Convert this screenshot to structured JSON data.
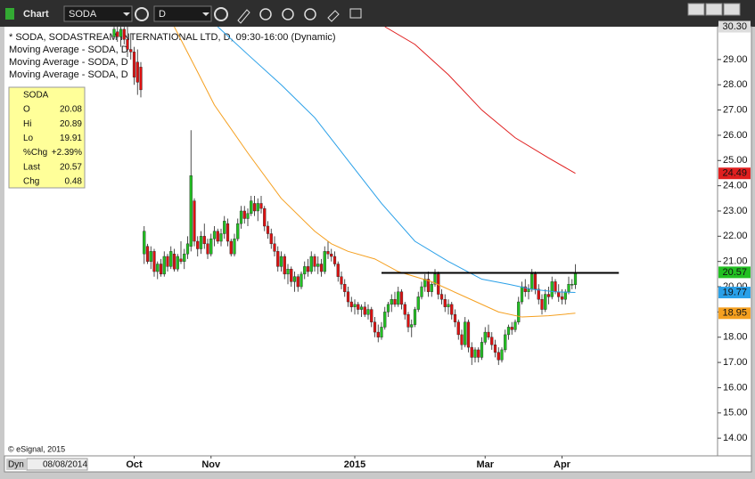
{
  "toolbar": {
    "title": "Chart",
    "symbol": "SODA",
    "interval": "D"
  },
  "chart_data": {
    "type": "candlestick",
    "legend_title": "* SODA, SODASTREAM INTERNATIONAL LTD, D, 09:30-16:00 (Dynamic)",
    "annotation": "© eSignal, 2015",
    "up_color": "#22c022",
    "down_color": "#dd1111",
    "categories": [
      null,
      null,
      null,
      null,
      null,
      null,
      "Oct",
      null,
      null,
      null,
      null,
      null,
      null,
      null,
      null,
      null,
      null,
      null,
      null,
      null,
      null,
      null,
      null,
      null,
      null,
      null,
      null,
      null,
      null,
      "Nov",
      null,
      null,
      null,
      null,
      null,
      null,
      null,
      null,
      null,
      null,
      null,
      null,
      null,
      null,
      null,
      null,
      null,
      null,
      null,
      null,
      null,
      null,
      null,
      null,
      null,
      null,
      null,
      null,
      null,
      null,
      null,
      null,
      null,
      null,
      null,
      null,
      null,
      null,
      null,
      null,
      null,
      null,
      "2015",
      null,
      null,
      null,
      null,
      null,
      null,
      null,
      null,
      null,
      null,
      null,
      null,
      null,
      null,
      null,
      null,
      null,
      null,
      null,
      null,
      null,
      null,
      null,
      null,
      null,
      null,
      null,
      null,
      null,
      null,
      null,
      null,
      null,
      null,
      null,
      null,
      null,
      null,
      "Mar",
      null,
      null,
      null,
      null,
      null,
      null,
      null,
      null,
      null,
      null,
      null,
      null,
      null,
      null,
      null,
      null,
      null,
      null,
      null,
      null,
      null,
      null,
      "Apr",
      null,
      null,
      null,
      null
    ],
    "ohlc": [
      [
        29.9,
        30.3,
        29.8,
        30.2
      ],
      [
        30.1,
        30.3,
        29.7,
        29.9
      ],
      [
        29.9,
        30.3,
        29.5,
        30.2
      ],
      [
        30.2,
        30.3,
        29.6,
        29.8
      ],
      [
        29.8,
        30.3,
        29.1,
        29.4
      ],
      [
        29.4,
        30.0,
        29.0,
        29.3
      ],
      [
        29.3,
        29.5,
        28.0,
        28.3
      ],
      [
        28.9,
        29.4,
        27.6,
        28.1
      ],
      [
        28.7,
        28.9,
        27.5,
        27.8
      ],
      [
        21.3,
        22.4,
        20.9,
        22.2
      ],
      [
        21.6,
        21.7,
        20.9,
        21.0
      ],
      [
        21.0,
        21.6,
        20.7,
        21.4
      ],
      [
        21.4,
        21.5,
        20.4,
        20.6
      ],
      [
        20.6,
        21.0,
        20.3,
        20.9
      ],
      [
        20.9,
        21.1,
        20.4,
        20.5
      ],
      [
        20.5,
        21.4,
        20.4,
        21.2
      ],
      [
        21.2,
        21.3,
        20.6,
        20.8
      ],
      [
        20.8,
        21.6,
        20.7,
        21.4
      ],
      [
        21.3,
        21.5,
        20.6,
        20.7
      ],
      [
        20.7,
        21.3,
        20.6,
        21.2
      ],
      [
        21.1,
        21.8,
        20.9,
        21.0
      ],
      [
        21.0,
        21.5,
        20.7,
        21.3
      ],
      [
        21.3,
        22.0,
        21.1,
        21.7
      ],
      [
        21.6,
        26.2,
        21.4,
        24.4
      ],
      [
        23.4,
        23.5,
        21.6,
        21.8
      ],
      [
        21.8,
        22.0,
        21.2,
        21.5
      ],
      [
        21.5,
        22.2,
        21.3,
        22.0
      ],
      [
        22.0,
        22.5,
        21.5,
        21.7
      ],
      [
        21.7,
        21.9,
        21.1,
        21.3
      ],
      [
        21.3,
        22.1,
        21.2,
        21.9
      ],
      [
        21.9,
        22.4,
        21.6,
        22.2
      ],
      [
        22.2,
        22.3,
        21.7,
        21.8
      ],
      [
        21.8,
        22.3,
        21.6,
        22.1
      ],
      [
        22.1,
        22.8,
        21.9,
        22.6
      ],
      [
        22.5,
        22.7,
        21.6,
        21.8
      ],
      [
        21.8,
        21.9,
        21.2,
        21.3
      ],
      [
        21.3,
        22.1,
        21.2,
        21.9
      ],
      [
        21.9,
        22.7,
        21.8,
        22.5
      ],
      [
        22.5,
        23.2,
        22.3,
        23.0
      ],
      [
        23.0,
        23.2,
        22.5,
        22.7
      ],
      [
        22.7,
        23.1,
        22.4,
        22.9
      ],
      [
        22.9,
        23.6,
        22.8,
        23.4
      ],
      [
        23.3,
        23.6,
        22.8,
        23.0
      ],
      [
        23.0,
        23.5,
        22.6,
        23.3
      ],
      [
        23.3,
        23.6,
        22.9,
        23.1
      ],
      [
        23.1,
        23.2,
        22.2,
        22.4
      ],
      [
        22.4,
        22.6,
        21.9,
        22.1
      ],
      [
        22.1,
        22.3,
        21.5,
        21.7
      ],
      [
        21.7,
        22.0,
        21.2,
        21.4
      ],
      [
        21.4,
        21.6,
        20.6,
        20.8
      ],
      [
        20.8,
        21.4,
        20.6,
        21.2
      ],
      [
        21.2,
        21.3,
        20.3,
        20.5
      ],
      [
        20.5,
        20.9,
        20.1,
        20.7
      ],
      [
        20.7,
        20.8,
        20.0,
        20.2
      ],
      [
        20.2,
        20.6,
        19.8,
        20.4
      ],
      [
        20.4,
        20.5,
        19.8,
        20.0
      ],
      [
        20.0,
        20.6,
        19.9,
        20.5
      ],
      [
        20.5,
        21.0,
        20.3,
        20.8
      ],
      [
        20.8,
        21.1,
        20.4,
        20.6
      ],
      [
        20.6,
        21.4,
        20.5,
        21.2
      ],
      [
        21.2,
        21.3,
        20.6,
        20.8
      ],
      [
        20.8,
        21.2,
        20.5,
        20.9
      ],
      [
        20.9,
        21.1,
        20.4,
        20.6
      ],
      [
        20.6,
        21.6,
        20.5,
        21.4
      ],
      [
        21.4,
        21.8,
        21.1,
        21.3
      ],
      [
        21.3,
        21.5,
        21.0,
        21.2
      ],
      [
        21.2,
        21.4,
        20.8,
        20.9
      ],
      [
        20.9,
        21.0,
        20.2,
        20.4
      ],
      [
        20.4,
        20.6,
        19.9,
        20.1
      ],
      [
        20.1,
        20.3,
        19.6,
        19.8
      ],
      [
        19.8,
        20.0,
        19.2,
        19.4
      ],
      [
        19.4,
        19.6,
        19.0,
        19.2
      ],
      [
        19.2,
        19.5,
        18.9,
        19.3
      ],
      [
        19.3,
        19.4,
        18.9,
        19.1
      ],
      [
        19.1,
        19.3,
        18.8,
        19.2
      ],
      [
        19.2,
        19.4,
        18.8,
        18.9
      ],
      [
        18.9,
        19.3,
        18.7,
        19.1
      ],
      [
        19.1,
        19.2,
        18.4,
        18.6
      ],
      [
        18.6,
        18.8,
        18.0,
        18.2
      ],
      [
        18.2,
        18.5,
        17.8,
        18.0
      ],
      [
        18.0,
        18.6,
        17.9,
        18.4
      ],
      [
        18.4,
        19.2,
        18.3,
        19.0
      ],
      [
        19.0,
        19.4,
        18.8,
        19.3
      ],
      [
        19.3,
        19.7,
        19.0,
        19.5
      ],
      [
        19.5,
        19.8,
        19.2,
        19.3
      ],
      [
        19.3,
        20.0,
        19.2,
        19.8
      ],
      [
        19.8,
        19.9,
        19.1,
        19.3
      ],
      [
        19.3,
        19.4,
        18.7,
        18.9
      ],
      [
        18.9,
        19.0,
        18.2,
        18.4
      ],
      [
        18.4,
        18.7,
        18.0,
        18.5
      ],
      [
        18.5,
        19.2,
        18.4,
        19.1
      ],
      [
        19.1,
        19.8,
        19.0,
        19.6
      ],
      [
        19.6,
        20.2,
        19.5,
        20.0
      ],
      [
        20.0,
        20.5,
        19.8,
        20.3
      ],
      [
        20.3,
        20.6,
        19.6,
        19.8
      ],
      [
        19.8,
        20.2,
        19.6,
        20.1
      ],
      [
        20.1,
        20.7,
        20.0,
        20.5
      ],
      [
        20.5,
        20.6,
        19.5,
        19.7
      ],
      [
        19.7,
        19.9,
        19.3,
        19.5
      ],
      [
        19.5,
        19.7,
        19.0,
        19.2
      ],
      [
        19.2,
        19.5,
        18.9,
        19.3
      ],
      [
        19.3,
        19.4,
        18.7,
        18.9
      ],
      [
        18.9,
        19.1,
        18.4,
        18.6
      ],
      [
        18.6,
        18.7,
        17.9,
        18.1
      ],
      [
        18.1,
        18.3,
        17.5,
        17.7
      ],
      [
        17.7,
        18.8,
        17.6,
        18.6
      ],
      [
        18.6,
        18.7,
        17.4,
        17.6
      ],
      [
        17.6,
        17.8,
        16.9,
        17.2
      ],
      [
        17.2,
        17.6,
        17.0,
        17.5
      ],
      [
        17.5,
        17.6,
        17.0,
        17.2
      ],
      [
        17.2,
        18.0,
        17.1,
        17.8
      ],
      [
        17.8,
        18.4,
        17.7,
        18.2
      ],
      [
        18.2,
        18.5,
        17.9,
        18.0
      ],
      [
        18.0,
        18.2,
        17.5,
        17.7
      ],
      [
        17.7,
        17.9,
        17.2,
        17.4
      ],
      [
        17.4,
        17.6,
        16.9,
        17.1
      ],
      [
        17.1,
        17.6,
        17.0,
        17.5
      ],
      [
        17.5,
        18.3,
        17.4,
        18.1
      ],
      [
        18.1,
        18.5,
        17.9,
        18.4
      ],
      [
        18.4,
        18.6,
        18.1,
        18.3
      ],
      [
        18.3,
        18.7,
        18.2,
        18.6
      ],
      [
        18.6,
        19.6,
        18.5,
        19.4
      ],
      [
        19.4,
        20.2,
        19.3,
        20.0
      ],
      [
        20.0,
        20.3,
        19.6,
        19.8
      ],
      [
        19.8,
        20.1,
        19.5,
        19.9
      ],
      [
        19.9,
        20.7,
        19.8,
        20.5
      ],
      [
        20.5,
        20.6,
        19.7,
        19.9
      ],
      [
        19.9,
        20.1,
        19.3,
        19.5
      ],
      [
        19.5,
        19.7,
        18.9,
        19.1
      ],
      [
        19.1,
        19.9,
        19.0,
        19.7
      ],
      [
        19.7,
        20.0,
        19.3,
        19.6
      ],
      [
        19.6,
        20.4,
        19.5,
        20.2
      ],
      [
        20.2,
        20.3,
        19.7,
        19.8
      ],
      [
        19.8,
        20.1,
        19.4,
        19.6
      ],
      [
        19.6,
        19.9,
        19.3,
        19.5
      ],
      [
        19.5,
        19.9,
        19.3,
        19.8
      ],
      [
        19.8,
        20.4,
        19.7,
        20.1
      ],
      [
        20.1,
        20.3,
        19.9,
        20.1
      ],
      [
        20.08,
        20.89,
        19.91,
        20.57
      ]
    ],
    "series": [
      {
        "name": "Moving Average - SODA, D",
        "color": "#f5a020",
        "x": [
          18,
          25,
          30,
          40,
          50,
          60,
          65,
          70,
          78,
          85,
          95,
          105,
          115,
          122,
          130,
          138
        ],
        "values": [
          30.3,
          28.5,
          27.2,
          25.3,
          23.5,
          22.2,
          21.7,
          21.4,
          21.1,
          20.6,
          20.2,
          19.6,
          19.0,
          18.8,
          18.85,
          18.95
        ]
      },
      {
        "name": "Moving Average - SODA, D",
        "color": "#2aa0e8",
        "x": [
          31,
          40,
          50,
          60,
          70,
          80,
          90,
          100,
          110,
          118,
          125,
          132,
          138
        ],
        "values": [
          30.3,
          29.2,
          28.0,
          26.7,
          25.0,
          23.3,
          21.8,
          21.0,
          20.3,
          20.1,
          19.9,
          19.8,
          19.77
        ]
      },
      {
        "name": "Moving Average - SODA, D",
        "color": "#e02020",
        "x": [
          81,
          90,
          100,
          110,
          120,
          130,
          138
        ],
        "values": [
          30.3,
          29.6,
          28.4,
          27.0,
          25.9,
          25.1,
          24.49
        ]
      }
    ],
    "ylim": [
      13.3,
      30.3
    ],
    "yticks": [
      {
        "value": 14,
        "label": "14.00"
      },
      {
        "value": 15,
        "label": "15.00"
      },
      {
        "value": 16,
        "label": "16.00"
      },
      {
        "value": 17,
        "label": "17.00"
      },
      {
        "value": 18,
        "label": "18.00"
      },
      {
        "value": 19,
        "label": "19.00"
      },
      {
        "value": 20,
        "label": "20.00"
      },
      {
        "value": 21,
        "label": "21.00"
      },
      {
        "value": 22,
        "label": "22.00"
      },
      {
        "value": 23,
        "label": "23.00"
      },
      {
        "value": 24,
        "label": "24.00"
      },
      {
        "value": 25,
        "label": "25.00"
      },
      {
        "value": 26,
        "label": "26.00"
      },
      {
        "value": 27,
        "label": "27.00"
      },
      {
        "value": 28,
        "label": "28.00"
      },
      {
        "value": 29,
        "label": "29.00"
      }
    ],
    "top_tag": {
      "value": 30.3,
      "label": "30.30"
    },
    "trend_line": {
      "value": 20.55,
      "x": [
        80,
        151
      ]
    },
    "data_window": {
      "title": "SODA",
      "rows": [
        [
          "O",
          "20.08"
        ],
        [
          "Hi",
          "20.89"
        ],
        [
          "Lo",
          "19.91"
        ],
        [
          "%Chg",
          "+2.39%"
        ],
        [
          "Last",
          "20.57"
        ],
        [
          "Chg",
          "0.48"
        ]
      ]
    }
  },
  "status": {
    "mode": "Dyn",
    "date": "08/08/2014"
  }
}
